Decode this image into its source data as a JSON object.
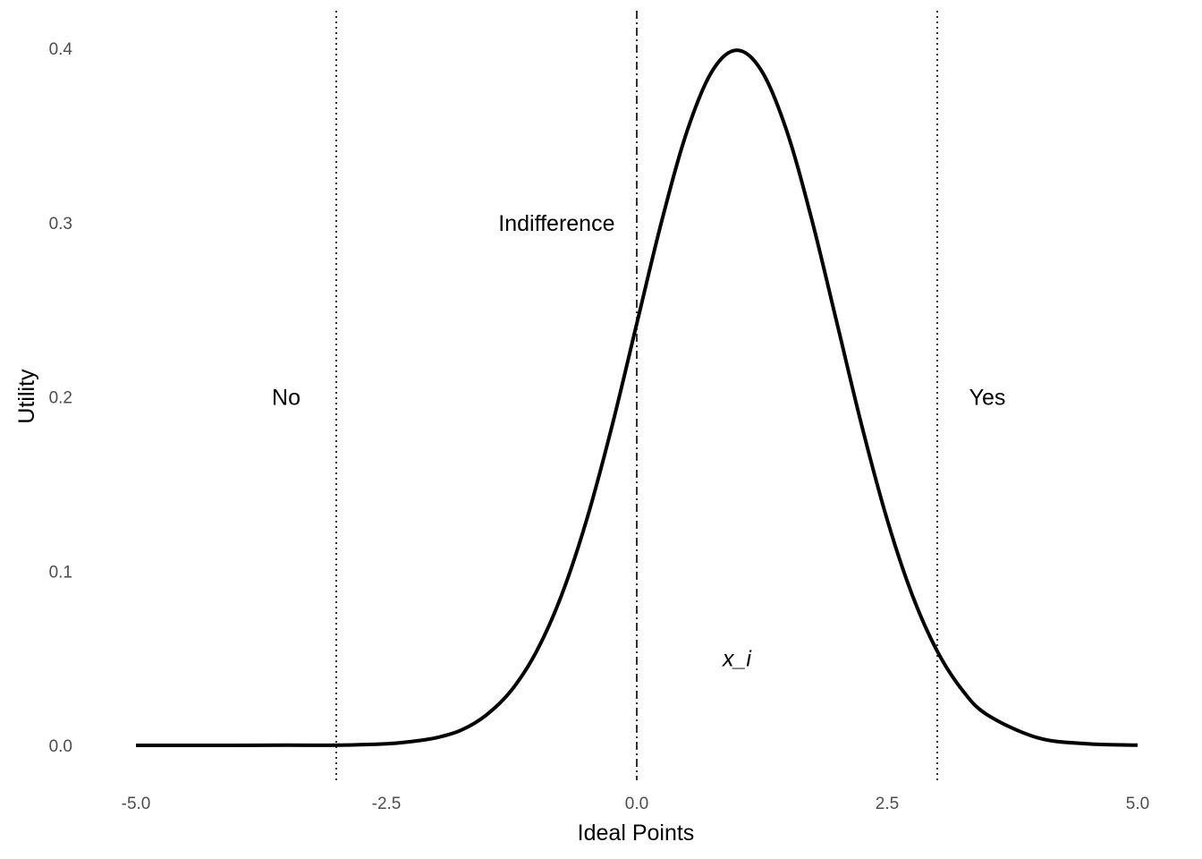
{
  "chart_data": {
    "type": "line",
    "title": "",
    "xlabel": "Ideal Points",
    "ylabel": "Utility",
    "xlim": [
      -5.0,
      5.0
    ],
    "ylim": [
      0.0,
      0.4
    ],
    "grid": false,
    "x_ticks": [
      "-5.0",
      "-2.5",
      "0.0",
      "2.5",
      "5.0"
    ],
    "y_ticks": [
      "0.0",
      "0.1",
      "0.2",
      "0.3",
      "0.4"
    ],
    "series": [
      {
        "color": "#000000",
        "x": [
          -5.0,
          -4.5,
          -4.0,
          -3.5,
          -3.0,
          -2.5,
          -2.25,
          -2.0,
          -1.75,
          -1.5,
          -1.25,
          -1.0,
          -0.75,
          -0.5,
          -0.25,
          0.0,
          0.25,
          0.5,
          0.75,
          1.0,
          1.25,
          1.5,
          1.75,
          2.0,
          2.25,
          2.5,
          2.75,
          3.0,
          3.25,
          3.5,
          4.0,
          4.5,
          5.0
        ],
        "y": [
          0.0,
          0.0,
          0.0,
          0.0001,
          0.0001,
          0.0009,
          0.0022,
          0.0044,
          0.0088,
          0.0175,
          0.0317,
          0.054,
          0.0863,
          0.1295,
          0.1826,
          0.242,
          0.3011,
          0.3521,
          0.3867,
          0.3989,
          0.3867,
          0.3521,
          0.3011,
          0.242,
          0.1826,
          0.1295,
          0.0863,
          0.054,
          0.0317,
          0.0175,
          0.0044,
          0.0009,
          0.0001
        ]
      }
    ],
    "vlines": [
      {
        "x": -3.0,
        "style": "dotted"
      },
      {
        "x": 0.0,
        "style": "dashdot"
      },
      {
        "x": 3.0,
        "style": "dotted"
      }
    ],
    "annotations": [
      {
        "text": "No",
        "x": -3.5,
        "y": 0.2,
        "italic": false
      },
      {
        "text": "Indifference",
        "x": -0.8,
        "y": 0.3,
        "italic": false
      },
      {
        "text": "Yes",
        "x": 3.5,
        "y": 0.2,
        "italic": false
      },
      {
        "text": "x_i",
        "x": 1.0,
        "y": 0.05,
        "italic": true
      }
    ]
  }
}
